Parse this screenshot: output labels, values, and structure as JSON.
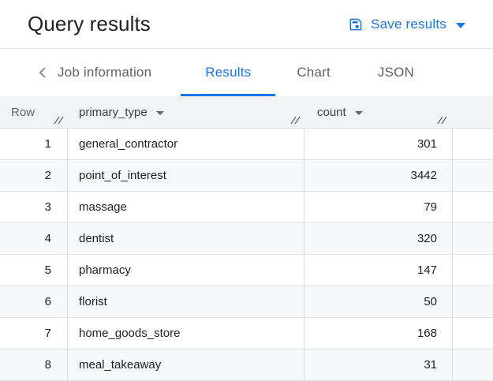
{
  "header": {
    "title": "Query results",
    "save_button": {
      "label": "Save results",
      "icon": "save-icon",
      "caret": "caret-down-icon"
    }
  },
  "tabs": {
    "back_icon": "chevron-left-icon",
    "items": [
      {
        "label": "Job information",
        "active": false
      },
      {
        "label": "Results",
        "active": true
      },
      {
        "label": "Chart",
        "active": false
      },
      {
        "label": "JSON",
        "active": false
      }
    ]
  },
  "table": {
    "columns": [
      {
        "label": "Row",
        "sortable": false,
        "resize_icon": "column-resize-icon"
      },
      {
        "label": "primary_type",
        "sortable": true,
        "caret_icon": "caret-down-icon",
        "resize_icon": "column-resize-icon"
      },
      {
        "label": "count",
        "sortable": true,
        "caret_icon": "caret-down-icon",
        "resize_icon": "column-resize-icon"
      }
    ],
    "rows": [
      {
        "row": 1,
        "primary_type": "general_contractor",
        "count": 301
      },
      {
        "row": 2,
        "primary_type": "point_of_interest",
        "count": 3442
      },
      {
        "row": 3,
        "primary_type": "massage",
        "count": 79
      },
      {
        "row": 4,
        "primary_type": "dentist",
        "count": 320
      },
      {
        "row": 5,
        "primary_type": "pharmacy",
        "count": 147
      },
      {
        "row": 6,
        "primary_type": "florist",
        "count": 50
      },
      {
        "row": 7,
        "primary_type": "home_goods_store",
        "count": 168
      },
      {
        "row": 8,
        "primary_type": "meal_takeaway",
        "count": 31
      }
    ]
  },
  "colors": {
    "accent_blue": "#1a73e8",
    "title_text": "#202124",
    "secondary_text": "#5f6368",
    "table_header_bg": "#f1f3f4",
    "row_stripe_bg": "#f7f8f9",
    "border": "#dadce0"
  }
}
